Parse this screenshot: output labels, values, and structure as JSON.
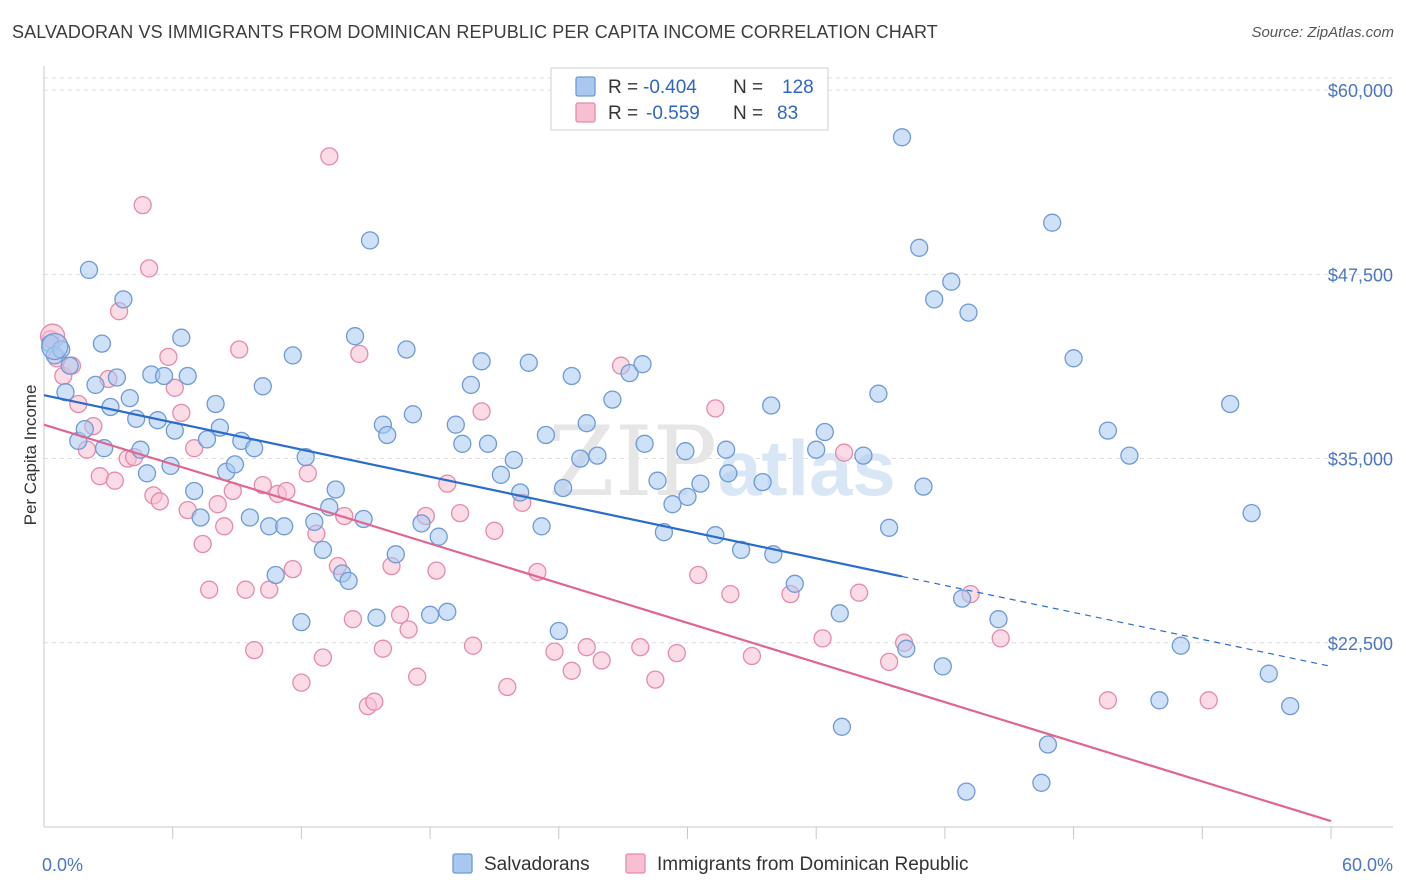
{
  "title": "SALVADORAN VS IMMIGRANTS FROM DOMINICAN REPUBLIC PER CAPITA INCOME CORRELATION CHART",
  "source": "Source: ZipAtlas.com",
  "watermark": {
    "zip": "ZIP",
    "atlas": "atlas"
  },
  "colors": {
    "blue_fill": "#a8c8f0",
    "blue_stroke": "#6f9ad6",
    "blue_line": "#2a6ccc",
    "pink_fill": "#f7c0d2",
    "pink_stroke": "#e68aaa",
    "pink_line": "#e0658f",
    "grid": "#dedede",
    "tick_text": "#4a76c4"
  },
  "legend": {
    "rows": [
      {
        "r_label": "R =",
        "r_value": "-0.404",
        "n_label": "N =",
        "n_value": "128"
      },
      {
        "r_label": "R =",
        "r_value": "-0.559",
        "n_label": "N =",
        "n_value": "83"
      }
    ]
  },
  "bottom_legend": [
    "Salvadorans",
    "Immigrants from Dominican Republic"
  ],
  "chart_data": {
    "type": "scatter",
    "title": "SALVADORAN VS IMMIGRANTS FROM DOMINICAN REPUBLIC PER CAPITA INCOME CORRELATION CHART",
    "xlabel": "",
    "ylabel": "Per Capita Income",
    "xlim": [
      0,
      60
    ],
    "ylim": [
      10000,
      61500
    ],
    "x_tick_labels": [
      {
        "v": 0,
        "label": "0.0%"
      },
      {
        "v": 60,
        "label": "60.0%"
      }
    ],
    "y_ticks": [
      {
        "v": 22500,
        "label": "$22,500"
      },
      {
        "v": 35000,
        "label": "$35,000"
      },
      {
        "v": 47500,
        "label": "$47,500"
      },
      {
        "v": 60000,
        "label": "$60,000"
      }
    ],
    "series": [
      {
        "name": "Salvadorans",
        "R": -0.404,
        "N": 128,
        "trend": {
          "x0": 0,
          "y0": 39300,
          "x1": 40,
          "y1": 27000,
          "dash_x1": 60,
          "dash_y1": 20900
        },
        "points": [
          [
            0.3,
            42800
          ],
          [
            0.5,
            42000
          ],
          [
            0.8,
            42400
          ],
          [
            1.2,
            41300
          ],
          [
            1.0,
            39500
          ],
          [
            1.6,
            36200
          ],
          [
            1.9,
            37000
          ],
          [
            2.1,
            47800
          ],
          [
            2.4,
            40000
          ],
          [
            2.7,
            42800
          ],
          [
            2.8,
            35700
          ],
          [
            3.1,
            38500
          ],
          [
            3.4,
            40500
          ],
          [
            3.7,
            45800
          ],
          [
            4.0,
            39100
          ],
          [
            4.3,
            37700
          ],
          [
            4.5,
            35600
          ],
          [
            4.8,
            34000
          ],
          [
            5.0,
            40700
          ],
          [
            5.3,
            37600
          ],
          [
            5.6,
            40600
          ],
          [
            5.9,
            34500
          ],
          [
            6.1,
            36900
          ],
          [
            6.4,
            43200
          ],
          [
            6.7,
            40600
          ],
          [
            7.0,
            32800
          ],
          [
            7.3,
            31000
          ],
          [
            7.6,
            36300
          ],
          [
            8.0,
            38700
          ],
          [
            8.2,
            37100
          ],
          [
            8.5,
            34100
          ],
          [
            8.9,
            34600
          ],
          [
            9.2,
            36200
          ],
          [
            9.6,
            31000
          ],
          [
            9.8,
            35700
          ],
          [
            10.2,
            39900
          ],
          [
            10.5,
            30400
          ],
          [
            10.8,
            27100
          ],
          [
            11.2,
            30400
          ],
          [
            11.6,
            42000
          ],
          [
            12.0,
            23900
          ],
          [
            12.2,
            35100
          ],
          [
            12.6,
            30700
          ],
          [
            13.0,
            28800
          ],
          [
            13.3,
            31700
          ],
          [
            13.6,
            32900
          ],
          [
            13.9,
            27200
          ],
          [
            14.2,
            26700
          ],
          [
            14.5,
            43300
          ],
          [
            14.9,
            30900
          ],
          [
            15.2,
            49800
          ],
          [
            15.5,
            24200
          ],
          [
            15.8,
            37300
          ],
          [
            16.0,
            36600
          ],
          [
            16.4,
            28500
          ],
          [
            16.9,
            42400
          ],
          [
            17.2,
            38000
          ],
          [
            17.6,
            30600
          ],
          [
            18.0,
            24400
          ],
          [
            18.4,
            29700
          ],
          [
            18.8,
            24600
          ],
          [
            19.2,
            37300
          ],
          [
            19.5,
            36000
          ],
          [
            19.9,
            40000
          ],
          [
            20.4,
            41600
          ],
          [
            20.7,
            36000
          ],
          [
            21.3,
            33900
          ],
          [
            21.9,
            34900
          ],
          [
            22.2,
            32700
          ],
          [
            22.6,
            41500
          ],
          [
            23.2,
            30400
          ],
          [
            23.4,
            36600
          ],
          [
            24.0,
            23300
          ],
          [
            24.2,
            33000
          ],
          [
            24.6,
            40600
          ],
          [
            25.0,
            35000
          ],
          [
            25.3,
            37400
          ],
          [
            25.8,
            35200
          ],
          [
            26.5,
            39000
          ],
          [
            27.3,
            40800
          ],
          [
            28.0,
            36000
          ],
          [
            28.6,
            33500
          ],
          [
            28.9,
            30000
          ],
          [
            29.3,
            31900
          ],
          [
            29.9,
            35500
          ],
          [
            30.6,
            33300
          ],
          [
            31.3,
            29800
          ],
          [
            31.9,
            34000
          ],
          [
            32.5,
            28800
          ],
          [
            33.5,
            33400
          ],
          [
            34.0,
            28500
          ],
          [
            35.0,
            26500
          ],
          [
            36.4,
            36800
          ],
          [
            37.1,
            24500
          ],
          [
            37.2,
            16800
          ],
          [
            38.9,
            39400
          ],
          [
            40.2,
            22100
          ],
          [
            41.0,
            33100
          ],
          [
            41.9,
            20900
          ],
          [
            42.8,
            25500
          ],
          [
            43.0,
            12400
          ],
          [
            44.5,
            24100
          ],
          [
            46.5,
            13000
          ],
          [
            46.8,
            15600
          ],
          [
            47.0,
            51000
          ],
          [
            48.0,
            41800
          ],
          [
            49.6,
            36900
          ],
          [
            50.6,
            35200
          ],
          [
            52.0,
            18600
          ],
          [
            53.0,
            22300
          ],
          [
            55.3,
            38700
          ],
          [
            56.3,
            31300
          ],
          [
            57.1,
            20400
          ],
          [
            58.1,
            18200
          ],
          [
            40.0,
            56800
          ],
          [
            40.8,
            49300
          ],
          [
            41.5,
            45800
          ],
          [
            42.3,
            47000
          ],
          [
            43.1,
            44900
          ],
          [
            36.0,
            35600
          ],
          [
            38.2,
            35200
          ],
          [
            39.4,
            30300
          ],
          [
            33.9,
            38600
          ],
          [
            31.8,
            35600
          ],
          [
            30.0,
            32400
          ],
          [
            27.9,
            41400
          ]
        ]
      },
      {
        "name": "Immigrants from Dominican Republic",
        "R": -0.559,
        "N": 83,
        "trend": {
          "x0": 0,
          "y0": 37300,
          "x1": 60,
          "y1": 10400
        },
        "points": [
          [
            0.3,
            43100
          ],
          [
            0.6,
            41800
          ],
          [
            0.9,
            40600
          ],
          [
            1.3,
            41300
          ],
          [
            1.6,
            38700
          ],
          [
            2.0,
            35600
          ],
          [
            2.3,
            37200
          ],
          [
            2.6,
            33800
          ],
          [
            3.0,
            40400
          ],
          [
            3.3,
            33500
          ],
          [
            3.5,
            45000
          ],
          [
            3.9,
            35000
          ],
          [
            4.2,
            35100
          ],
          [
            4.6,
            52200
          ],
          [
            4.9,
            47900
          ],
          [
            5.1,
            32500
          ],
          [
            5.4,
            32100
          ],
          [
            5.8,
            41900
          ],
          [
            6.1,
            39800
          ],
          [
            6.4,
            38100
          ],
          [
            6.7,
            31500
          ],
          [
            7.0,
            35700
          ],
          [
            7.4,
            29200
          ],
          [
            7.7,
            26100
          ],
          [
            8.1,
            31900
          ],
          [
            8.4,
            30400
          ],
          [
            8.8,
            32800
          ],
          [
            9.1,
            42400
          ],
          [
            9.4,
            26100
          ],
          [
            9.8,
            22000
          ],
          [
            10.2,
            33200
          ],
          [
            10.5,
            26100
          ],
          [
            10.9,
            32600
          ],
          [
            11.3,
            32800
          ],
          [
            11.6,
            27500
          ],
          [
            12.0,
            19800
          ],
          [
            12.3,
            34000
          ],
          [
            12.7,
            29900
          ],
          [
            13.0,
            21500
          ],
          [
            13.3,
            55500
          ],
          [
            13.7,
            27700
          ],
          [
            14.0,
            31100
          ],
          [
            14.4,
            24100
          ],
          [
            14.7,
            42100
          ],
          [
            15.1,
            18200
          ],
          [
            15.4,
            18500
          ],
          [
            15.8,
            22100
          ],
          [
            16.2,
            27700
          ],
          [
            16.6,
            24400
          ],
          [
            17.0,
            23400
          ],
          [
            17.4,
            20200
          ],
          [
            17.8,
            31100
          ],
          [
            18.3,
            27400
          ],
          [
            18.8,
            33300
          ],
          [
            19.4,
            31300
          ],
          [
            20.0,
            22300
          ],
          [
            20.4,
            38200
          ],
          [
            21.0,
            30100
          ],
          [
            21.6,
            19500
          ],
          [
            22.3,
            32000
          ],
          [
            23.0,
            27300
          ],
          [
            23.8,
            21900
          ],
          [
            24.6,
            20600
          ],
          [
            25.3,
            22200
          ],
          [
            26.0,
            21300
          ],
          [
            26.9,
            41300
          ],
          [
            27.8,
            22200
          ],
          [
            28.5,
            20000
          ],
          [
            29.5,
            21800
          ],
          [
            30.5,
            27100
          ],
          [
            31.3,
            38400
          ],
          [
            32.0,
            25800
          ],
          [
            33.0,
            21600
          ],
          [
            34.8,
            25800
          ],
          [
            36.3,
            22800
          ],
          [
            37.3,
            35400
          ],
          [
            38.0,
            25900
          ],
          [
            39.4,
            21200
          ],
          [
            40.1,
            22500
          ],
          [
            43.2,
            25800
          ],
          [
            44.6,
            22800
          ],
          [
            49.6,
            18600
          ],
          [
            54.3,
            18600
          ]
        ]
      }
    ]
  }
}
